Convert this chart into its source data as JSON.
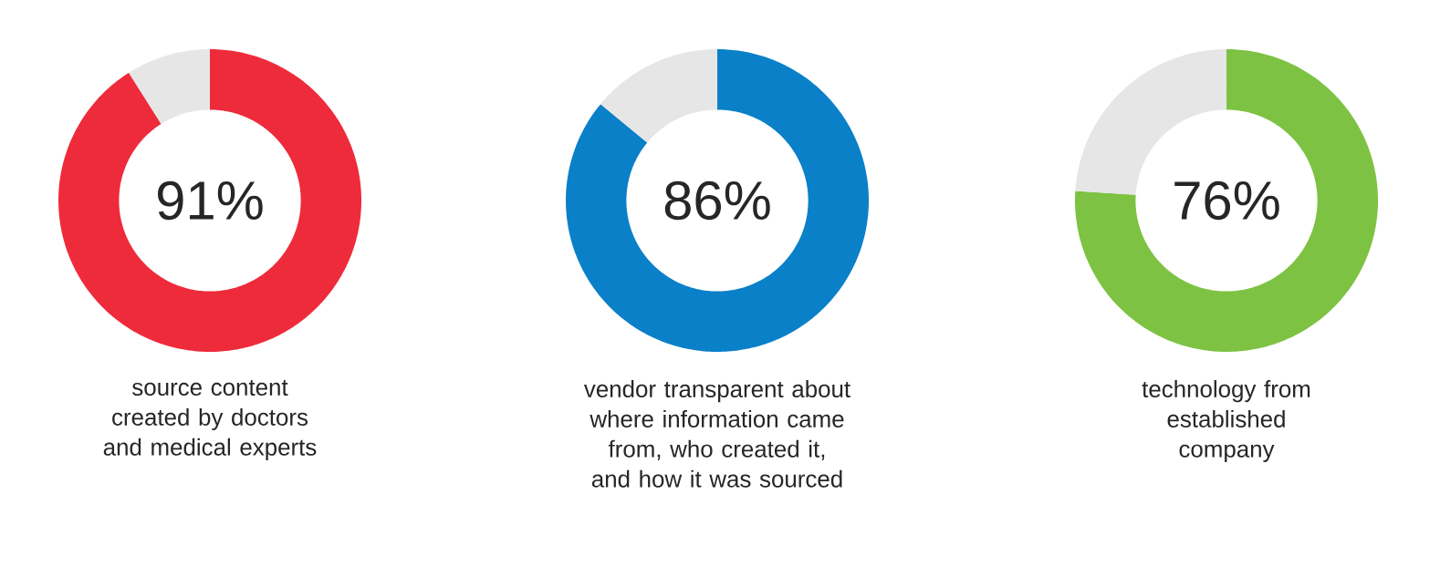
{
  "chart_data": [
    {
      "type": "donut",
      "categories": [
        null,
        null
      ],
      "values": [
        91,
        9
      ],
      "colors": [
        "#ee2b3b",
        "#e6e6e6"
      ],
      "value_labels": [
        "91%",
        null
      ],
      "xlabel": "source content created by doctors and medical experts"
    },
    {
      "type": "donut",
      "categories": [
        null,
        null
      ],
      "values": [
        86,
        14
      ],
      "colors": [
        "#0a80c8",
        "#e6e6e6"
      ],
      "value_labels": [
        "86%",
        null
      ],
      "xlabel": "vendor transparent about where information came from, who created it, and how it was sourced"
    },
    {
      "type": "donut",
      "categories": [
        null,
        null
      ],
      "values": [
        76,
        24
      ],
      "colors": [
        "#7dc242",
        "#e6e6e6"
      ],
      "value_labels": [
        "76%",
        null
      ],
      "xlabel": "technology from established company"
    }
  ]
}
